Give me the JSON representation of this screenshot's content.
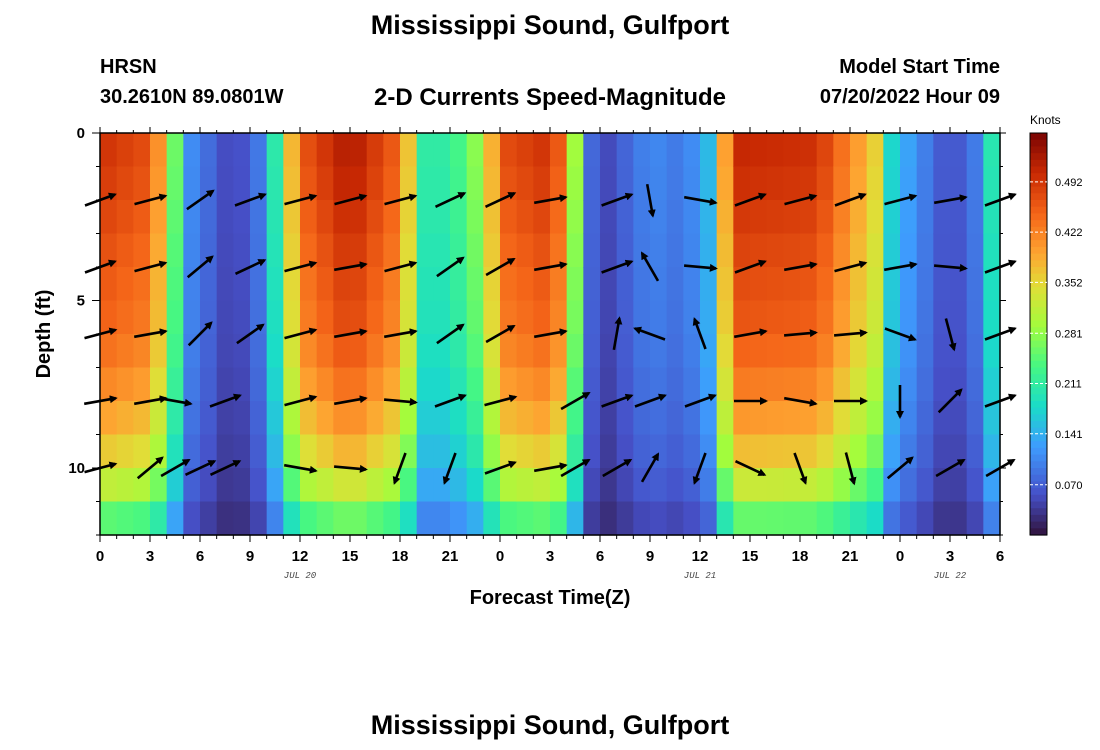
{
  "header": {
    "title": "Mississippi Sound, Gulfport",
    "station": "HRSN",
    "coords": "30.2610N  89.0801W",
    "subtitle": "2-D Currents Speed-Magnitude",
    "model_label": "Model Start Time",
    "model_date": "07/20/2022 Hour 09"
  },
  "footer": {
    "title": "Mississippi Sound, Gulfport"
  },
  "chart_data": {
    "type": "heatmap",
    "xlabel": "Forecast Time(Z)",
    "ylabel": "Depth (ft)",
    "x_range": [
      0,
      54
    ],
    "x_tick_values": [
      0,
      3,
      6,
      9,
      12,
      15,
      18,
      21,
      24,
      27,
      30,
      33,
      36,
      39,
      42,
      45,
      48,
      51,
      54
    ],
    "x_tick_labels": [
      "0",
      "3",
      "6",
      "9",
      "12",
      "15",
      "18",
      "21",
      "0",
      "3",
      "6",
      "9",
      "12",
      "15",
      "18",
      "21",
      "0",
      "3",
      "6"
    ],
    "date_labels": [
      {
        "text": "JUL 20",
        "x": 12
      },
      {
        "text": "JUL 21",
        "x": 36
      },
      {
        "text": "JUL 22",
        "x": 51
      }
    ],
    "y_range": [
      0,
      12
    ],
    "y_inverted": true,
    "y_tick_labels": [
      "0",
      "5",
      "10"
    ],
    "y_tick_values": [
      0,
      5,
      10
    ],
    "colorbar": {
      "label": "Knots",
      "range": [
        0,
        0.56
      ],
      "ticks": [
        "0.492",
        "0.422",
        "0.352",
        "0.281",
        "0.211",
        "0.141",
        "0.070"
      ],
      "tick_values": [
        0.492,
        0.422,
        0.352,
        0.281,
        0.211,
        0.141,
        0.07
      ]
    },
    "speed_profile_knots": [
      [
        0,
        0.5
      ],
      [
        3,
        0.47
      ],
      [
        4.2,
        0.33
      ],
      [
        4.8,
        0.19
      ],
      [
        5.5,
        0.11
      ],
      [
        8,
        0.04
      ],
      [
        10,
        0.11
      ],
      [
        11,
        0.3
      ],
      [
        12,
        0.46
      ],
      [
        15,
        0.53
      ],
      [
        18,
        0.45
      ],
      [
        19.5,
        0.21
      ],
      [
        21,
        0.21
      ],
      [
        23,
        0.3
      ],
      [
        24,
        0.47
      ],
      [
        27,
        0.5
      ],
      [
        28.3,
        0.4
      ],
      [
        28.8,
        0.13
      ],
      [
        30,
        0.04
      ],
      [
        33,
        0.11
      ],
      [
        35,
        0.09
      ],
      [
        36.5,
        0.15
      ],
      [
        37.2,
        0.33
      ],
      [
        38,
        0.51
      ],
      [
        43,
        0.5
      ],
      [
        46.5,
        0.36
      ],
      [
        47.2,
        0.19
      ],
      [
        48.5,
        0.13
      ],
      [
        51,
        0.05
      ],
      [
        53,
        0.11
      ],
      [
        53.5,
        0.2
      ],
      [
        54,
        0.44
      ]
    ],
    "depth_factor": [
      [
        0,
        1.0
      ],
      [
        2,
        0.97
      ],
      [
        4,
        0.93
      ],
      [
        6,
        0.9
      ],
      [
        8,
        0.82
      ],
      [
        10,
        0.7
      ],
      [
        11,
        0.58
      ],
      [
        12,
        0.42
      ]
    ],
    "vectors_note": "current direction arrows at depths 2, 4, 6, 8, 10 ft",
    "vectors": [
      {
        "t": 0,
        "angles": [
          -20,
          -20,
          -15,
          -10,
          -15
        ]
      },
      {
        "t": 3,
        "angles": [
          -15,
          -15,
          -10,
          -10,
          -40
        ]
      },
      {
        "t": 4.5,
        "angles": [
          null,
          null,
          null,
          10,
          -30
        ]
      },
      {
        "t": 6,
        "angles": [
          -35,
          -40,
          -45,
          null,
          -25
        ]
      },
      {
        "t": 7.5,
        "angles": [
          null,
          null,
          null,
          -20,
          -25
        ]
      },
      {
        "t": 9,
        "angles": [
          -20,
          -25,
          -35,
          null,
          null
        ]
      },
      {
        "t": 12,
        "angles": [
          -15,
          -15,
          -15,
          -15,
          10
        ]
      },
      {
        "t": 15,
        "angles": [
          -15,
          -10,
          -10,
          -10,
          5
        ]
      },
      {
        "t": 18,
        "angles": [
          -15,
          -15,
          -10,
          5,
          110
        ]
      },
      {
        "t": 21,
        "angles": [
          -25,
          -35,
          -35,
          -20,
          110
        ]
      },
      {
        "t": 24,
        "angles": [
          -25,
          -30,
          -30,
          -15,
          -20
        ]
      },
      {
        "t": 27,
        "angles": [
          -10,
          -10,
          -10,
          null,
          -10
        ]
      },
      {
        "t": 28.5,
        "angles": [
          null,
          null,
          null,
          -30,
          -30
        ]
      },
      {
        "t": 31,
        "angles": [
          -20,
          -20,
          -80,
          -20,
          -30
        ]
      },
      {
        "t": 33,
        "angles": [
          80,
          -120,
          -160,
          -20,
          -60
        ]
      },
      {
        "t": 36,
        "angles": [
          10,
          5,
          -110,
          -20,
          110
        ]
      },
      {
        "t": 39,
        "angles": [
          -20,
          -20,
          -10,
          0,
          25
        ]
      },
      {
        "t": 42,
        "angles": [
          -15,
          -10,
          -5,
          10,
          70
        ]
      },
      {
        "t": 45,
        "angles": [
          -20,
          -15,
          -5,
          0,
          75
        ]
      },
      {
        "t": 48,
        "angles": [
          -15,
          -10,
          20,
          90,
          -40
        ]
      },
      {
        "t": 51,
        "angles": [
          -10,
          5,
          75,
          -45,
          -30
        ]
      },
      {
        "t": 54,
        "angles": [
          -20,
          -20,
          -20,
          -20,
          -30
        ]
      }
    ]
  }
}
